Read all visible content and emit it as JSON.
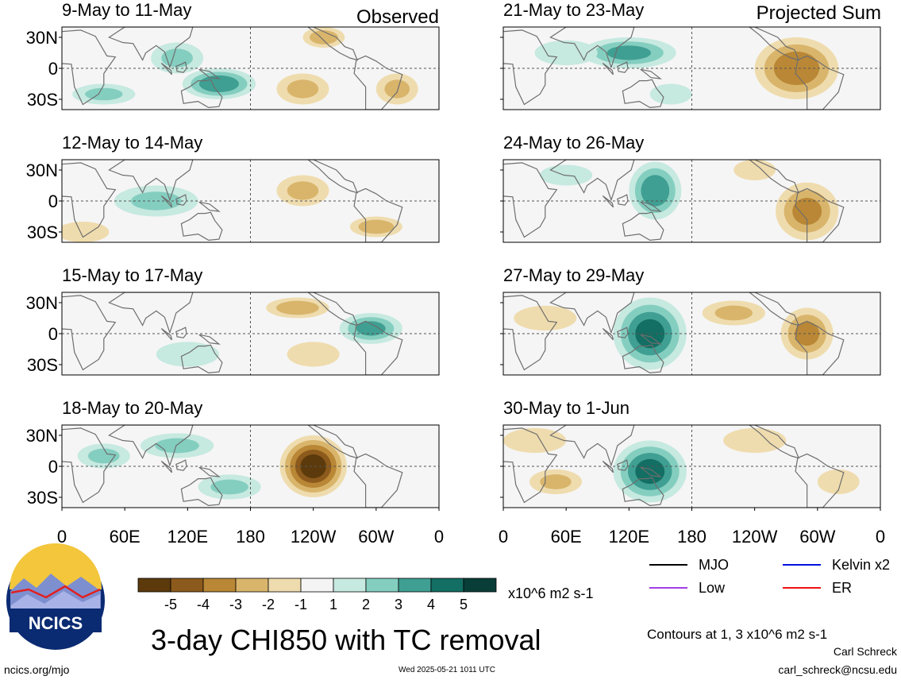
{
  "header": {
    "left_label": "Observed",
    "right_label": "Projected Sum"
  },
  "chart_data": {
    "type": "heatmap",
    "title": "3-day CHI850 with TC removal",
    "units": "x10^6 m2 s-1",
    "contours_note": "Contours at 1, 3 x10^6 m2 s-1",
    "lat_ticks": [
      "30N",
      "0",
      "30S"
    ],
    "lon_ticks": [
      "0",
      "60E",
      "120E",
      "180",
      "120W",
      "60W",
      "0"
    ],
    "colorbar": {
      "labels": [
        "-5",
        "-4",
        "-3",
        "-2",
        "-1",
        "1",
        "2",
        "3",
        "4",
        "5"
      ],
      "colors": [
        "#5c3a0c",
        "#8c5a1c",
        "#b98735",
        "#d9b56c",
        "#efdcae",
        "#f4f4f4",
        "#c6e9e0",
        "#84cec0",
        "#3f9f92",
        "#136e63",
        "#083e37"
      ]
    },
    "legend": [
      {
        "name": "MJO",
        "color": "#000000"
      },
      {
        "name": "Kelvin x2",
        "color": "#0011dd"
      },
      {
        "name": "Low",
        "color": "#a33ee6"
      },
      {
        "name": "ER",
        "color": "#ee1111"
      }
    ],
    "panels": [
      {
        "label": "9-May to 11-May",
        "column": "Observed",
        "anomalies": [
          {
            "lon": 150,
            "lat": -15,
            "value": 3.5,
            "rlon": 35,
            "rlat": 15
          },
          {
            "lon": 110,
            "lat": 10,
            "value": 2,
            "rlon": 25,
            "rlat": 15
          },
          {
            "lon": 40,
            "lat": -25,
            "value": 2,
            "rlon": 30,
            "rlat": 10
          },
          {
            "lon": 250,
            "lat": 30,
            "value": -2.5,
            "rlon": 20,
            "rlat": 10
          },
          {
            "lon": 230,
            "lat": -20,
            "value": -2,
            "rlon": 25,
            "rlat": 15
          },
          {
            "lon": 320,
            "lat": -20,
            "value": -2,
            "rlon": 20,
            "rlat": 15
          }
        ]
      },
      {
        "label": "12-May to 14-May",
        "column": "Observed",
        "anomalies": [
          {
            "lon": 90,
            "lat": 0,
            "value": 2,
            "rlon": 40,
            "rlat": 15
          },
          {
            "lon": 230,
            "lat": 10,
            "value": -2,
            "rlon": 25,
            "rlat": 15
          },
          {
            "lon": 300,
            "lat": -25,
            "value": -2.5,
            "rlon": 25,
            "rlat": 10
          },
          {
            "lon": 20,
            "lat": -30,
            "value": -1.5,
            "rlon": 25,
            "rlat": 10
          }
        ]
      },
      {
        "label": "15-May to 17-May",
        "column": "Observed",
        "anomalies": [
          {
            "lon": 225,
            "lat": 25,
            "value": -2.5,
            "rlon": 30,
            "rlat": 10
          },
          {
            "lon": 295,
            "lat": 5,
            "value": 3,
            "rlon": 30,
            "rlat": 15
          },
          {
            "lon": 120,
            "lat": -20,
            "value": 1.5,
            "rlon": 30,
            "rlat": 12
          },
          {
            "lon": 240,
            "lat": -20,
            "value": -1.5,
            "rlon": 25,
            "rlat": 12
          }
        ]
      },
      {
        "label": "18-May to 20-May",
        "column": "Observed",
        "anomalies": [
          {
            "lon": 240,
            "lat": 0,
            "value": -5.2,
            "rlon": 32,
            "rlat": 30
          },
          {
            "lon": 110,
            "lat": 20,
            "value": 2,
            "rlon": 35,
            "rlat": 12
          },
          {
            "lon": 160,
            "lat": -20,
            "value": 2,
            "rlon": 30,
            "rlat": 12
          },
          {
            "lon": 40,
            "lat": 10,
            "value": 2,
            "rlon": 25,
            "rlat": 12
          }
        ]
      },
      {
        "label": "21-May to 23-May",
        "column": "Projected Sum",
        "anomalies": [
          {
            "lon": 120,
            "lat": 15,
            "value": 3,
            "rlon": 45,
            "rlat": 15
          },
          {
            "lon": 280,
            "lat": 0,
            "value": -3.5,
            "rlon": 40,
            "rlat": 30
          },
          {
            "lon": 60,
            "lat": 15,
            "value": 1.5,
            "rlon": 30,
            "rlat": 12
          },
          {
            "lon": 160,
            "lat": -25,
            "value": 1.5,
            "rlon": 20,
            "rlat": 10
          }
        ]
      },
      {
        "label": "24-May to 26-May",
        "column": "Projected Sum",
        "anomalies": [
          {
            "lon": 145,
            "lat": 10,
            "value": 3.5,
            "rlon": 25,
            "rlat": 28
          },
          {
            "lon": 290,
            "lat": -10,
            "value": -3,
            "rlon": 30,
            "rlat": 28
          },
          {
            "lon": 60,
            "lat": 25,
            "value": 1.5,
            "rlon": 25,
            "rlat": 10
          },
          {
            "lon": 240,
            "lat": 30,
            "value": -1.5,
            "rlon": 20,
            "rlat": 10
          }
        ]
      },
      {
        "label": "27-May to 29-May",
        "column": "Projected Sum",
        "anomalies": [
          {
            "lon": 140,
            "lat": 0,
            "value": 4,
            "rlon": 35,
            "rlat": 35
          },
          {
            "lon": 290,
            "lat": 0,
            "value": -3,
            "rlon": 25,
            "rlat": 25
          },
          {
            "lon": 220,
            "lat": 20,
            "value": -2,
            "rlon": 30,
            "rlat": 12
          },
          {
            "lon": 40,
            "lat": 15,
            "value": -1.5,
            "rlon": 30,
            "rlat": 12
          }
        ]
      },
      {
        "label": "30-May to 1-Jun",
        "column": "Projected Sum",
        "anomalies": [
          {
            "lon": 140,
            "lat": -5,
            "value": 4,
            "rlon": 35,
            "rlat": 30
          },
          {
            "lon": 50,
            "lat": -15,
            "value": -2,
            "rlon": 25,
            "rlat": 12
          },
          {
            "lon": 30,
            "lat": 25,
            "value": -1.5,
            "rlon": 30,
            "rlat": 12
          },
          {
            "lon": 240,
            "lat": 25,
            "value": -1.5,
            "rlon": 30,
            "rlat": 12
          },
          {
            "lon": 320,
            "lat": -15,
            "value": -1.5,
            "rlon": 20,
            "rlat": 12
          }
        ]
      }
    ]
  },
  "logo": {
    "text": "NCICS"
  },
  "footer": {
    "url": "ncics.org/mjo",
    "timestamp": "Wed 2025-05-21 1011 UTC",
    "author": "Carl Schreck",
    "email": "carl_schreck@ncsu.edu"
  }
}
